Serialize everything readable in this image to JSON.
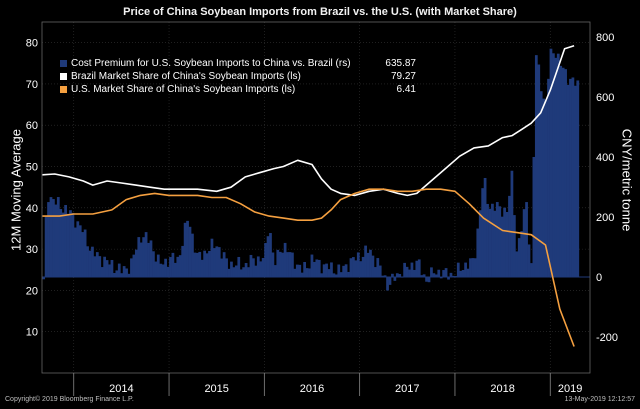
{
  "title": "Price of China Soybean Imports from Brazil vs. the U.S. (with Market Share)",
  "footer": {
    "copyright": "Copyright© 2019 Bloomberg Finance L.P.",
    "timestamp": "13-May-2019 12:12:57"
  },
  "legend": [
    {
      "label": "Cost Premium for U.S. Soybean Imports to China vs. Brazil (rs)",
      "value": "635.87",
      "color": "#1f3a7a"
    },
    {
      "label": "Brazil Market Share of China's Soybean Imports (ls)",
      "value": "79.27",
      "color": "#ffffff"
    },
    {
      "label": "U.S. Market Share of China's Soybean Imports (ls)",
      "value": "6.41",
      "color": "#f5a040"
    }
  ],
  "chart_data": {
    "type": "line",
    "title": "Price of China Soybean Imports from Brazil vs. the U.S. (with Market Share)",
    "ylabel_left": "12M Moving Average",
    "ylabel_right": "CNY/metric tonne",
    "ylim_left": [
      0,
      85
    ],
    "ylim_right": [
      -320,
      850
    ],
    "yticks_left": [
      "10",
      "20",
      "30",
      "40",
      "50",
      "60",
      "70",
      "80"
    ],
    "yticks_right": [
      "-200",
      "0",
      "200",
      "400",
      "600",
      "800"
    ],
    "x_labels": [
      "2014",
      "2015",
      "2016",
      "2017",
      "2018",
      "2019"
    ],
    "x_range": [
      2013.667,
      2019.417
    ],
    "grid": true,
    "legend_position": "top-left",
    "series": [
      {
        "name": "Brazil Market Share of China's Soybean Imports (ls)",
        "axis": "left",
        "color": "#ffffff",
        "x": [
          2013.67,
          2013.8,
          2013.95,
          2014.1,
          2014.2,
          2014.35,
          2014.5,
          2014.65,
          2014.8,
          2014.95,
          2015.1,
          2015.3,
          2015.5,
          2015.65,
          2015.8,
          2015.95,
          2016.1,
          2016.2,
          2016.35,
          2016.5,
          2016.6,
          2016.7,
          2016.8,
          2016.95,
          2017.1,
          2017.25,
          2017.4,
          2017.5,
          2017.6,
          2017.75,
          2017.9,
          2018.05,
          2018.2,
          2018.35,
          2018.5,
          2018.6,
          2018.7,
          2018.8,
          2018.9,
          2019.0,
          2019.15,
          2019.25
        ],
        "values": [
          48,
          48.2,
          47.5,
          46.5,
          45.5,
          46.5,
          46,
          45.5,
          45,
          44.5,
          44.5,
          44.5,
          44,
          45,
          47.5,
          48.5,
          49.5,
          50,
          51.5,
          50.5,
          47,
          44.5,
          43.5,
          43,
          44,
          44.5,
          43.5,
          43,
          43.5,
          46.5,
          49.5,
          52.5,
          54.5,
          55,
          57,
          57.5,
          59,
          60.5,
          63,
          68.5,
          78.5,
          79.27
        ]
      },
      {
        "name": "U.S. Market Share of China's Soybean Imports (ls)",
        "axis": "left",
        "color": "#f5a040",
        "x": [
          2013.67,
          2013.85,
          2014.0,
          2014.2,
          2014.4,
          2014.55,
          2014.7,
          2014.85,
          2015.0,
          2015.15,
          2015.3,
          2015.45,
          2015.6,
          2015.75,
          2015.9,
          2016.05,
          2016.2,
          2016.35,
          2016.5,
          2016.6,
          2016.7,
          2016.8,
          2016.95,
          2017.1,
          2017.25,
          2017.4,
          2017.55,
          2017.7,
          2017.85,
          2018.0,
          2018.15,
          2018.3,
          2018.5,
          2018.65,
          2018.8,
          2018.95,
          2019.1,
          2019.25
        ],
        "values": [
          38,
          38,
          38.5,
          38.5,
          39.5,
          42,
          43,
          43.5,
          43,
          43,
          43,
          42.5,
          42.5,
          41,
          39,
          38,
          37.5,
          37,
          37,
          37.5,
          39.5,
          42,
          43.5,
          44.5,
          44.5,
          44,
          44,
          44.5,
          44.5,
          44,
          41,
          37.5,
          34.5,
          34,
          33.5,
          31,
          15.5,
          6.41
        ]
      },
      {
        "name": "Cost Premium for U.S. Soybean Imports to China vs. Brazil (rs)",
        "axis": "right",
        "type": "bar",
        "color": "#1f3a7a",
        "x": [
          2013.67,
          2013.72,
          2013.8,
          2013.9,
          2014.0,
          2014.1,
          2014.2,
          2014.3,
          2014.4,
          2014.5,
          2014.6,
          2014.7,
          2014.8,
          2014.9,
          2015.0,
          2015.1,
          2015.2,
          2015.3,
          2015.4,
          2015.5,
          2015.6,
          2015.7,
          2015.8,
          2015.9,
          2016.0,
          2016.05,
          2016.1,
          2016.2,
          2016.3,
          2016.4,
          2016.5,
          2016.6,
          2016.7,
          2016.8,
          2016.9,
          2017.0,
          2017.1,
          2017.2,
          2017.3,
          2017.4,
          2017.5,
          2017.6,
          2017.7,
          2017.8,
          2017.9,
          2018.0,
          2018.1,
          2018.2,
          2018.3,
          2018.35,
          2018.45,
          2018.55,
          2018.6,
          2018.65,
          2018.75,
          2018.8,
          2018.85,
          2018.95,
          2019.0,
          2019.05,
          2019.1,
          2019.2,
          2019.3
        ],
        "values": [
          -120,
          280,
          250,
          230,
          200,
          150,
          80,
          60,
          40,
          20,
          40,
          140,
          120,
          40,
          60,
          60,
          200,
          60,
          90,
          110,
          50,
          40,
          40,
          60,
          60,
          190,
          40,
          110,
          60,
          20,
          60,
          40,
          30,
          20,
          50,
          70,
          90,
          40,
          -30,
          10,
          30,
          50,
          -10,
          20,
          10,
          10,
          40,
          50,
          330,
          240,
          230,
          220,
          340,
          80,
          250,
          20,
          740,
          560,
          740,
          760,
          710,
          660,
          635.87
        ]
      }
    ]
  }
}
